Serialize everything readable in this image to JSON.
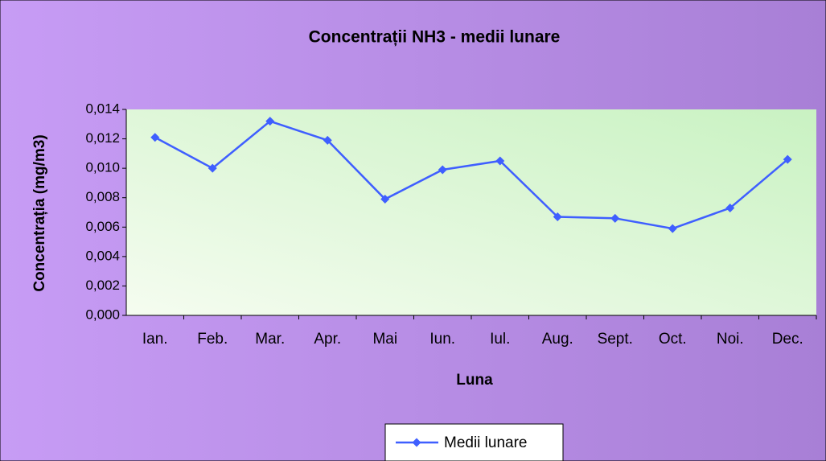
{
  "chart_data": {
    "type": "line",
    "title": "Concentrații NH3 - medii lunare",
    "x_label": "Luna",
    "y_label": "Concentrația (mg/m3)",
    "categories": [
      "Ian.",
      "Feb.",
      "Mar.",
      "Apr.",
      "Mai",
      "Iun.",
      "Iul.",
      "Aug.",
      "Sept.",
      "Oct.",
      "Noi.",
      "Dec."
    ],
    "series": [
      {
        "name": "Medii lunare",
        "color": "#3f5fff",
        "values": [
          0.0121,
          0.01,
          0.0132,
          0.0119,
          0.0079,
          0.0099,
          0.0105,
          0.0067,
          0.0066,
          0.0059,
          0.0073,
          0.0106
        ]
      }
    ],
    "ylim": [
      0,
      0.014
    ],
    "yticks": [
      {
        "value": 0,
        "label": "0,000"
      },
      {
        "value": 0.002,
        "label": "0,002"
      },
      {
        "value": 0.004,
        "label": "0,004"
      },
      {
        "value": 0.006,
        "label": "0,006"
      },
      {
        "value": 0.008,
        "label": "0,008"
      },
      {
        "value": 0.01,
        "label": "0,010"
      },
      {
        "value": 0.012,
        "label": "0,012"
      },
      {
        "value": 0.014,
        "label": "0,014"
      }
    ],
    "legend": "bottom"
  }
}
